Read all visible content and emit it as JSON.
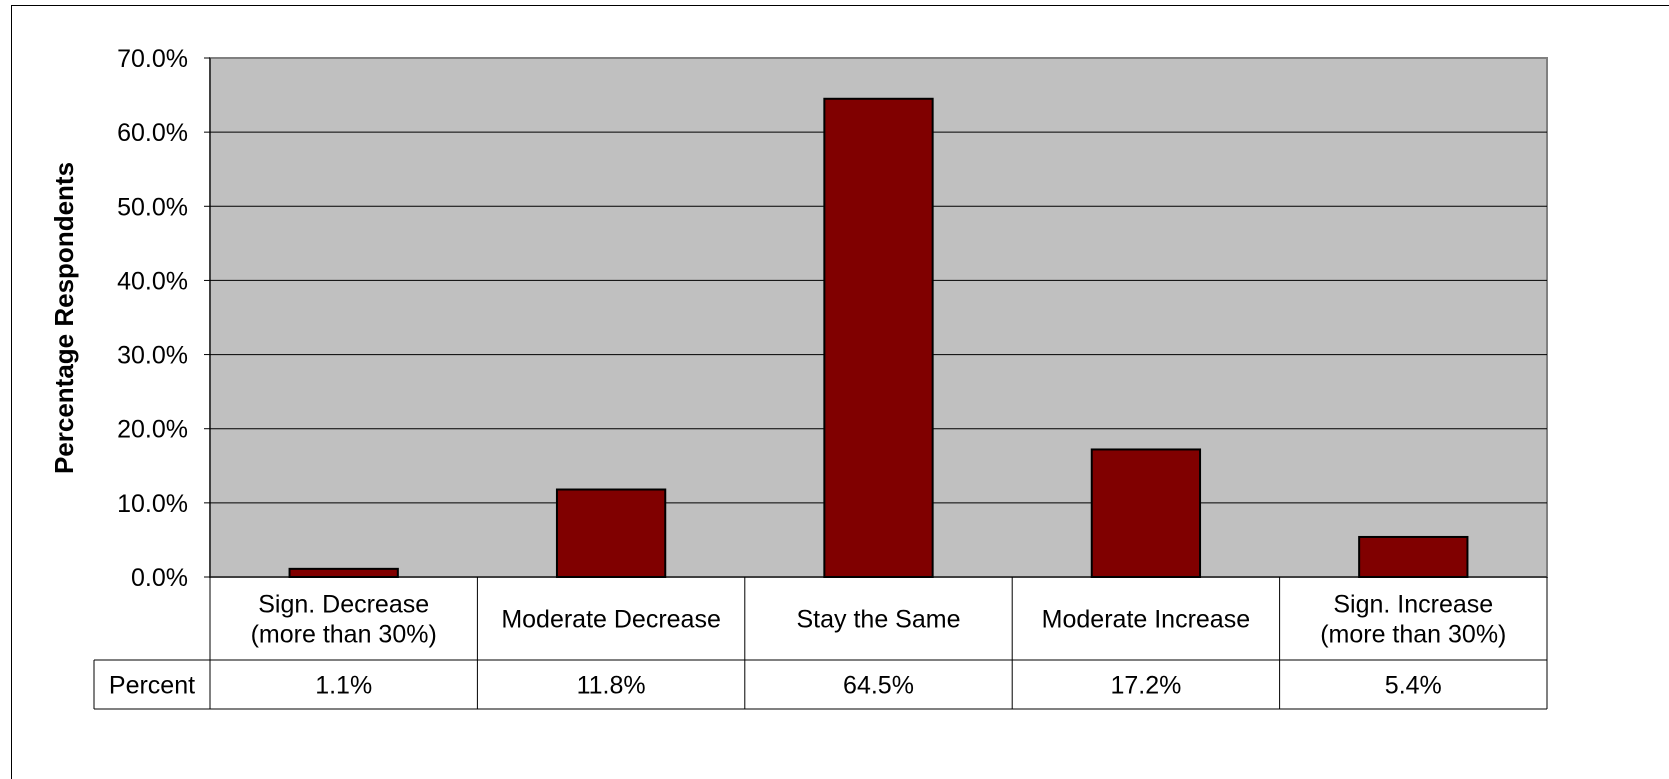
{
  "chart_data": {
    "type": "bar",
    "ylabel": "Percentage Respondents",
    "categories": [
      [
        "Sign. Decrease",
        "(more than 30%)"
      ],
      [
        "Moderate Decrease"
      ],
      [
        "Stay the Same"
      ],
      [
        "Moderate Increase"
      ],
      [
        "Sign. Increase",
        "(more than 30%)"
      ]
    ],
    "values": [
      1.1,
      11.8,
      64.5,
      17.2,
      5.4
    ],
    "ylim": [
      0,
      70
    ],
    "yticks": [
      "0.0%",
      "10.0%",
      "20.0%",
      "30.0%",
      "40.0%",
      "50.0%",
      "60.0%",
      "70.0%"
    ],
    "grid": true,
    "legend": "none",
    "data_table": {
      "row_label": "Percent",
      "cells": [
        "1.1%",
        "11.8%",
        "64.5%",
        "17.2%",
        "5.4%"
      ]
    }
  },
  "colors": {
    "bar_fill": "#800000",
    "plot_background": "#c0c0c0",
    "gridline": "#000000"
  }
}
